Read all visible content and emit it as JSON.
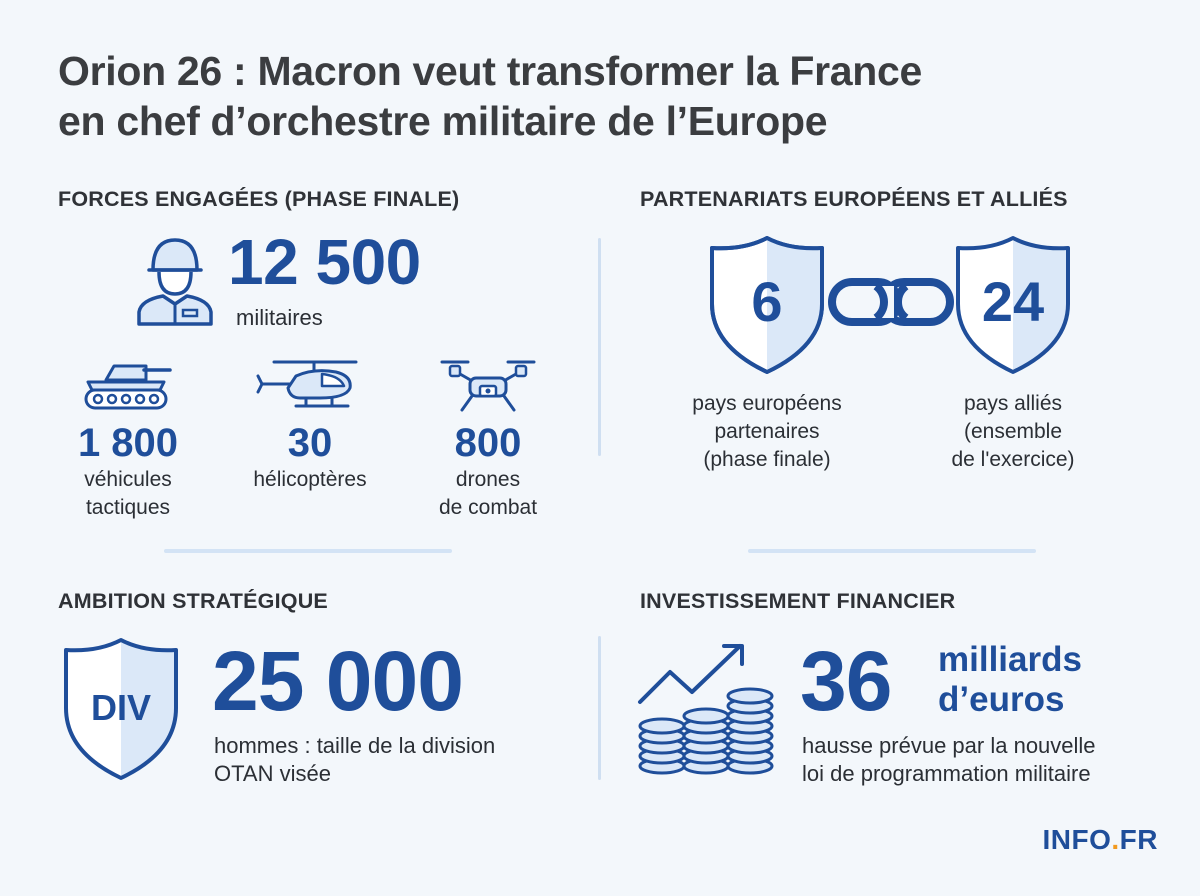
{
  "title": {
    "line1": "Orion 26 : Macron veut transformer la France",
    "line2": "en chef d’orchestre militaire de l’Europe"
  },
  "forces": {
    "heading": "FORCES ENGAGÉES (PHASE FINALE)",
    "soldiers": {
      "value": "12 500",
      "label": "militaires",
      "icon": "soldier-icon"
    },
    "vehicles": {
      "value": "1 800",
      "label_line1": "véhicules",
      "label_line2": "tactiques",
      "icon": "tank-icon"
    },
    "helicopters": {
      "value": "30",
      "label_line1": "hélicoptères",
      "icon": "helicopter-icon"
    },
    "drones": {
      "value": "800",
      "label_line1": "drones",
      "label_line2": "de combat",
      "icon": "drone-icon"
    }
  },
  "partners": {
    "heading": "PARTENARIATS EUROPÉENS ET ALLIÉS",
    "european": {
      "value": "6",
      "line1": "pays européens",
      "line2": "partenaires",
      "line3": "(phase finale)",
      "icon": "shield-icon"
    },
    "allies": {
      "value": "24",
      "line1": "pays alliés",
      "line2": "(ensemble",
      "line3": "de l'exercice)",
      "icon": "shield-icon"
    },
    "link_icon": "chain-link-icon"
  },
  "ambition": {
    "heading": "AMBITION STRATÉGIQUE",
    "badge": "DIV",
    "value": "25 000",
    "line1": "hommes : taille de la division",
    "line2": "OTAN visée"
  },
  "finance": {
    "heading": "INVESTISSEMENT FINANCIER",
    "value": "36",
    "unit_line1": "milliards",
    "unit_line2": "d’euros",
    "line1": "hausse prévue par la nouvelle",
    "line2": "loi de programmation militaire",
    "icon": "coins-growth-icon"
  },
  "brand": {
    "part1": "INFO",
    "dot": ".",
    "part2": "FR"
  },
  "colors": {
    "accent": "#1f4e9a",
    "icon_fill": "#dbe8f8",
    "brand_dot": "#f29a1f",
    "background": "#f3f7fb"
  }
}
